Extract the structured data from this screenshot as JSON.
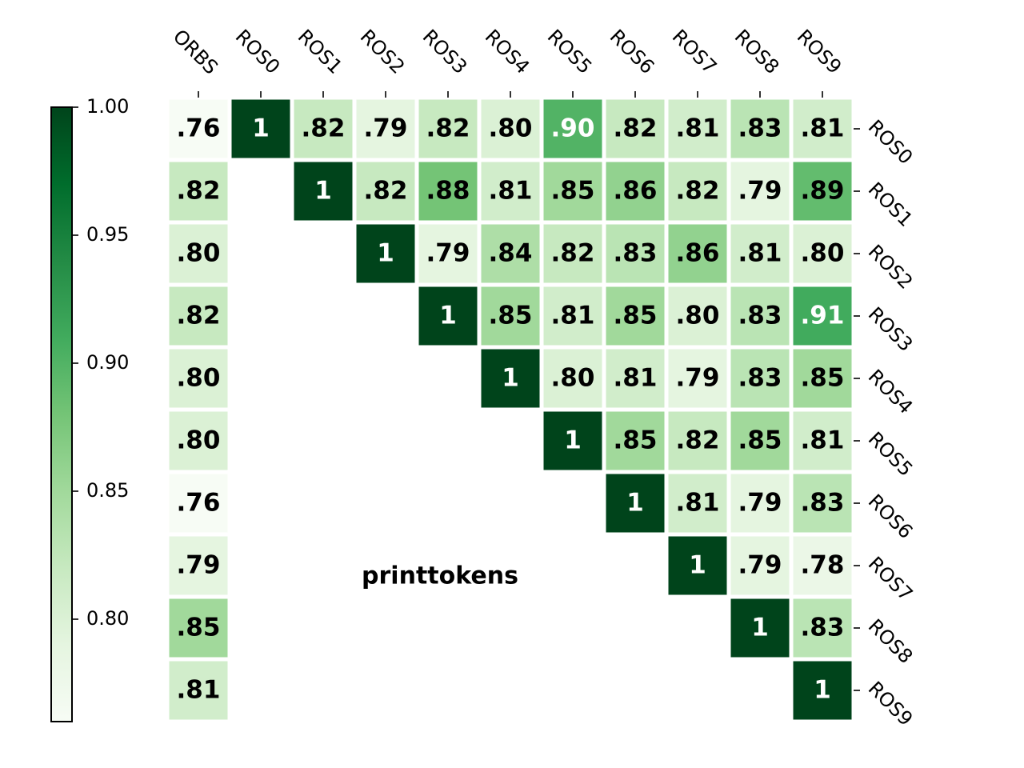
{
  "chart_data": {
    "type": "heatmap",
    "title": "printtokens",
    "x_labels": [
      "ORBS",
      "ROS0",
      "ROS1",
      "ROS2",
      "ROS3",
      "ROS4",
      "ROS5",
      "ROS6",
      "ROS7",
      "ROS8",
      "ROS9"
    ],
    "y_labels": [
      "ROS0",
      "ROS1",
      "ROS2",
      "ROS3",
      "ROS4",
      "ROS5",
      "ROS6",
      "ROS7",
      "ROS8",
      "ROS9"
    ],
    "values": [
      [
        0.76,
        1,
        0.82,
        0.79,
        0.82,
        0.8,
        0.9,
        0.82,
        0.81,
        0.83,
        0.81
      ],
      [
        0.82,
        null,
        1,
        0.82,
        0.88,
        0.81,
        0.85,
        0.86,
        0.82,
        0.79,
        0.89
      ],
      [
        0.8,
        null,
        null,
        1,
        0.79,
        0.84,
        0.82,
        0.83,
        0.86,
        0.81,
        0.8
      ],
      [
        0.82,
        null,
        null,
        null,
        1,
        0.85,
        0.81,
        0.85,
        0.8,
        0.83,
        0.91
      ],
      [
        0.8,
        null,
        null,
        null,
        null,
        1,
        0.8,
        0.81,
        0.79,
        0.83,
        0.85
      ],
      [
        0.8,
        null,
        null,
        null,
        null,
        null,
        1,
        0.85,
        0.82,
        0.85,
        0.81
      ],
      [
        0.76,
        null,
        null,
        null,
        null,
        null,
        null,
        1,
        0.81,
        0.79,
        0.83
      ],
      [
        0.79,
        null,
        null,
        null,
        null,
        null,
        null,
        null,
        1,
        0.79,
        0.78
      ],
      [
        0.85,
        null,
        null,
        null,
        null,
        null,
        null,
        null,
        null,
        1,
        0.83
      ],
      [
        0.81,
        null,
        null,
        null,
        null,
        null,
        null,
        null,
        null,
        null,
        1
      ]
    ],
    "cell_text": [
      [
        ".76",
        "1",
        ".82",
        ".79",
        ".82",
        ".80",
        ".90",
        ".82",
        ".81",
        ".83",
        ".81"
      ],
      [
        ".82",
        "",
        "1",
        ".82",
        ".88",
        ".81",
        ".85",
        ".86",
        ".82",
        ".79",
        ".89"
      ],
      [
        ".80",
        "",
        "",
        "1",
        ".79",
        ".84",
        ".82",
        ".83",
        ".86",
        ".81",
        ".80"
      ],
      [
        ".82",
        "",
        "",
        "",
        "1",
        ".85",
        ".81",
        ".85",
        ".80",
        ".83",
        ".91"
      ],
      [
        ".80",
        "",
        "",
        "",
        "",
        "1",
        ".80",
        ".81",
        ".79",
        ".83",
        ".85"
      ],
      [
        ".80",
        "",
        "",
        "",
        "",
        "",
        "1",
        ".85",
        ".82",
        ".85",
        ".81"
      ],
      [
        ".76",
        "",
        "",
        "",
        "",
        "",
        "",
        "1",
        ".81",
        ".79",
        ".83"
      ],
      [
        ".79",
        "",
        "",
        "",
        "",
        "",
        "",
        "",
        "1",
        ".79",
        ".78"
      ],
      [
        ".85",
        "",
        "",
        "",
        "",
        "",
        "",
        "",
        "",
        "1",
        ".83"
      ],
      [
        ".81",
        "",
        "",
        "",
        "",
        "",
        "",
        "",
        "",
        "",
        "1"
      ]
    ],
    "colormap": "Greens",
    "colorbar": {
      "range": [
        0.76,
        1.0
      ],
      "ticks": [
        0.8,
        0.85,
        0.9,
        0.95,
        1.0
      ],
      "tick_labels": [
        "0.80",
        "0.85",
        "0.90",
        "0.95",
        "1.00"
      ],
      "position": "left"
    },
    "x_axis_position": "top",
    "y_axis_position": "right",
    "grid": false
  }
}
